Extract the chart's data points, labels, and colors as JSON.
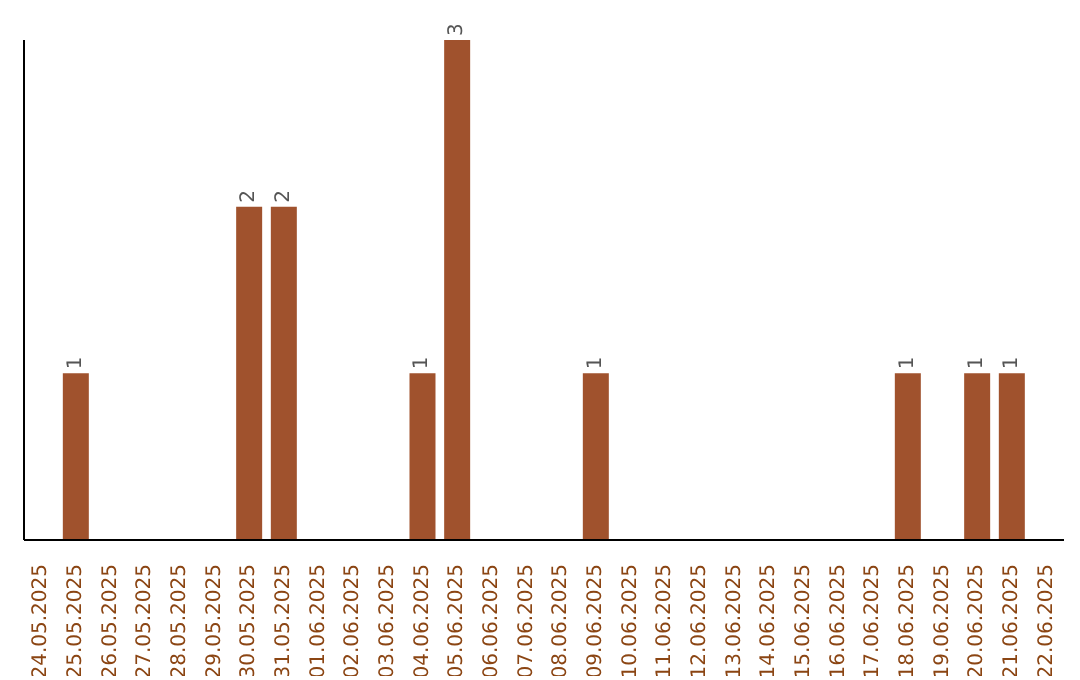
{
  "chart_data": {
    "type": "bar",
    "categories": [
      "24.05.2025",
      "25.05.2025",
      "26.05.2025",
      "27.05.2025",
      "28.05.2025",
      "29.05.2025",
      "30.05.2025",
      "31.05.2025",
      "01.06.2025",
      "02.06.2025",
      "03.06.2025",
      "04.06.2025",
      "05.06.2025",
      "06.06.2025",
      "07.06.2025",
      "08.06.2025",
      "09.06.2025",
      "10.06.2025",
      "11.06.2025",
      "12.06.2025",
      "13.06.2025",
      "14.06.2025",
      "15.06.2025",
      "16.06.2025",
      "17.06.2025",
      "18.06.2025",
      "19.06.2025",
      "20.06.2025",
      "21.06.2025",
      "22.06.2025"
    ],
    "values": [
      0,
      1,
      0,
      0,
      0,
      0,
      2,
      2,
      0,
      0,
      0,
      1,
      3,
      0,
      0,
      0,
      1,
      0,
      0,
      0,
      0,
      0,
      0,
      0,
      0,
      1,
      0,
      1,
      1,
      0
    ],
    "value_labels": [
      null,
      "1",
      null,
      null,
      null,
      null,
      "2",
      "2",
      null,
      null,
      null,
      "1",
      "3",
      null,
      null,
      null,
      "1",
      null,
      null,
      null,
      null,
      null,
      null,
      null,
      null,
      "1",
      null,
      "1",
      "1",
      null
    ],
    "color": "#a0522d",
    "tick_labels": "x"
  }
}
